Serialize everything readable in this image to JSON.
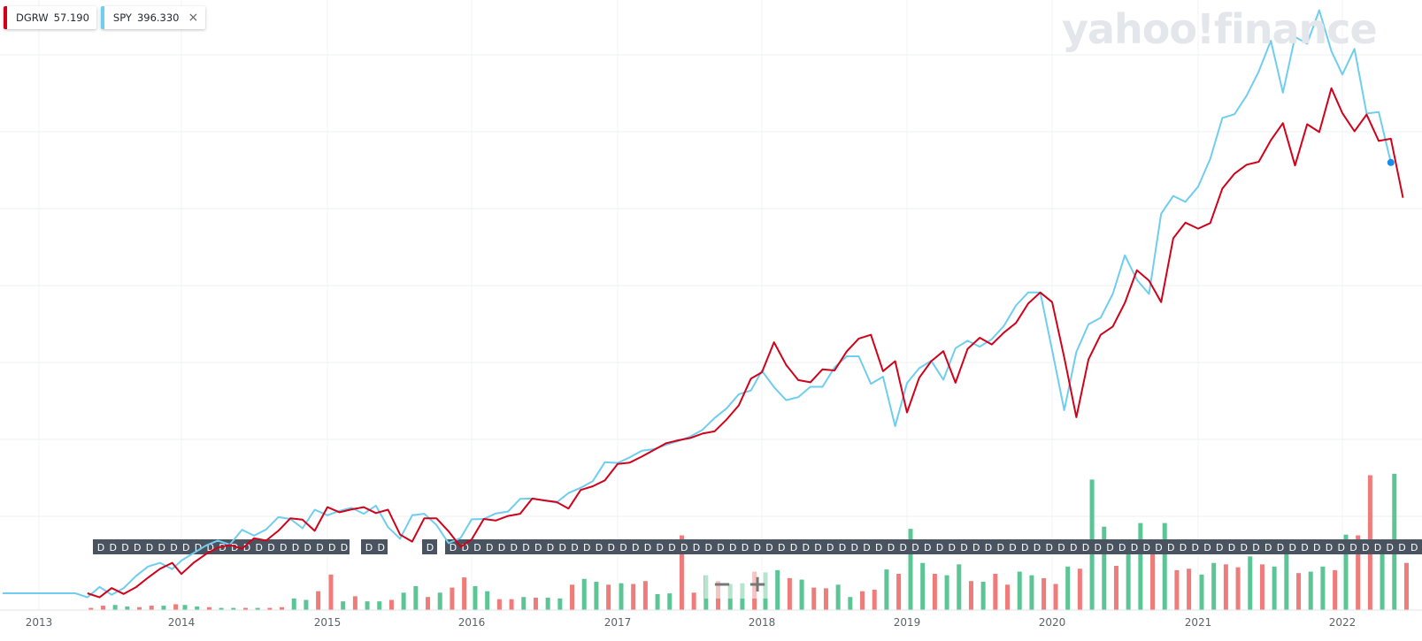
{
  "legend": [
    {
      "symbol": "DGRW",
      "value": "57.190",
      "color": "#d0021b"
    },
    {
      "symbol": "SPY",
      "value": "396.330",
      "color": "#6fcdf0",
      "close": "×"
    }
  ],
  "watermark": "yahoo!finance",
  "zoom": {
    "minus": "−",
    "plus": "+"
  },
  "dividend_marker": "D",
  "chart_data": {
    "type": "line",
    "title": "",
    "x_ticks": [
      "2013",
      "2014",
      "2015",
      "2016",
      "2017",
      "2018",
      "2019",
      "2020",
      "2021",
      "2022"
    ],
    "grid": true,
    "x_range": [
      "2012-10",
      "2022-05"
    ],
    "series": [
      {
        "name": "DGRW",
        "color": "#d0021b",
        "start": "2013-05",
        "step": "1 month",
        "values": [
          0.0,
          -1.1,
          1.4,
          -0.2,
          1.6,
          4.2,
          6.6,
          8.2,
          5.2,
          8.2,
          10.5,
          12.3,
          13.0,
          12.0,
          14.8,
          14.2,
          16.8,
          20.2,
          19.8,
          16.8,
          23.2,
          21.8,
          22.6,
          23.2,
          21.6,
          22.5,
          15.8,
          13.9,
          20.2,
          20.2,
          16.7,
          12.5,
          14.5,
          20.0,
          19.6,
          20.8,
          21.4,
          25.5,
          25.0,
          24.6,
          22.8,
          27.8,
          28.8,
          30.4,
          34.8,
          35.2,
          36.8,
          38.6,
          40.4,
          41.2,
          41.8,
          43.0,
          43.6,
          46.8,
          50.6,
          57.8,
          59.5,
          67.6,
          61.5,
          57.4,
          56.8,
          60.3,
          60.0,
          65.1,
          68.6,
          69.6,
          59.8,
          62.5,
          48.7,
          58.0,
          62.5,
          65.2,
          56.7,
          65.8,
          68.8,
          67.0,
          70.2,
          72.8,
          78.0,
          81.0,
          78.4,
          63.5,
          47.4,
          63.0,
          69.6,
          71.8,
          78.2,
          87.0,
          84.2,
          78.4,
          95.6,
          99.8,
          98.2,
          99.7,
          109.0,
          113.0,
          115.4,
          116.2,
          122.0,
          126.6,
          115.2,
          126.3,
          124.2,
          136.0,
          129.3,
          124.4,
          128.9,
          121.8,
          122.4,
          106.5
        ]
      },
      {
        "name": "SPY",
        "color": "#6fcdf0",
        "start": "2012-10",
        "step": "1 month",
        "values": [
          0.0,
          0.0,
          0.0,
          0.0,
          0.0,
          0.0,
          0.0,
          -1.1,
          1.7,
          -0.4,
          1.4,
          4.6,
          7.2,
          8.2,
          6.5,
          8.8,
          10.8,
          12.8,
          14.2,
          13.1,
          17.1,
          15.5,
          17.2,
          20.5,
          20.0,
          17.5,
          22.5,
          21.0,
          22.2,
          23.0,
          21.4,
          23.6,
          17.8,
          14.7,
          21.0,
          21.4,
          18.4,
          13.5,
          14.9,
          19.9,
          20.0,
          21.5,
          22.0,
          25.4,
          25.5,
          25.0,
          24.4,
          27.0,
          28.4,
          30.2,
          35.3,
          35.1,
          36.6,
          38.4,
          38.8,
          40.0,
          41.0,
          42.2,
          44.0,
          47.2,
          49.8,
          53.6,
          54.6,
          59.9,
          55.5,
          52.0,
          52.8,
          55.6,
          55.6,
          60.8,
          63.8,
          63.8,
          56.4,
          58.3,
          45.0,
          56.6,
          60.6,
          62.6,
          57.5,
          66.0,
          68.0,
          66.4,
          68.4,
          72.0,
          77.5,
          81.0,
          81.0,
          65.5,
          49.3,
          65.0,
          72.4,
          74.2,
          80.6,
          91.0,
          84.4,
          80.6,
          102.2,
          107.0,
          105.4,
          109.5,
          117.0,
          128.0,
          129.0,
          134.0,
          140.5,
          148.8,
          134.8,
          149.8,
          148.0,
          157.0,
          146.0,
          139.7,
          146.6,
          129.2,
          129.6,
          116.0
        ]
      },
      {
        "name": "Volume",
        "type": "bar",
        "start": "2013-05",
        "step": "1 month",
        "values": [
          3,
          6,
          7,
          5,
          4,
          6,
          6,
          8,
          7,
          5,
          4,
          3,
          3,
          3,
          3,
          3,
          4,
          16,
          14,
          26,
          49,
          12,
          19,
          12,
          12,
          14,
          24,
          33,
          18,
          24,
          31,
          45,
          33,
          26,
          15,
          15,
          18,
          17,
          17,
          16,
          35,
          43,
          39,
          35,
          37,
          36,
          40,
          22,
          23,
          103,
          24,
          48,
          40,
          36,
          37,
          53,
          52,
          55,
          44,
          42,
          31,
          30,
          35,
          18,
          26,
          28,
          56,
          50,
          112,
          65,
          50,
          48,
          63,
          40,
          39,
          50,
          35,
          53,
          48,
          44,
          36,
          60,
          57,
          180,
          115,
          61,
          78,
          120,
          90,
          120,
          55,
          57,
          49,
          65,
          63,
          59,
          74,
          63,
          60,
          91,
          51,
          53,
          60,
          55,
          104,
          103,
          186,
          85,
          188,
          65
        ]
      }
    ]
  }
}
